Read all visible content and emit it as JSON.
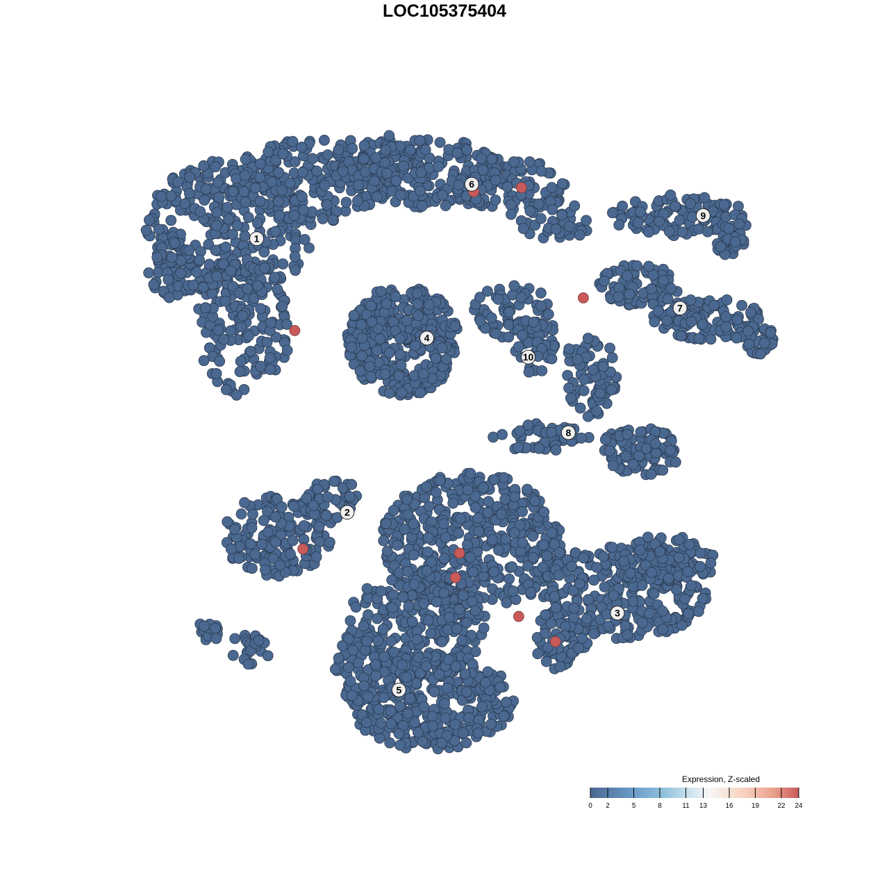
{
  "chart_data": {
    "type": "scatter",
    "title": "LOC105375404",
    "xlabel": "",
    "ylabel": "",
    "xlim": [
      -50,
      50
    ],
    "ylim": [
      -50,
      50
    ],
    "grid": false,
    "axes_visible": false,
    "base_color": "#4a6890",
    "high_color": "#c95a5a",
    "clusters": [
      {
        "label": "1",
        "x": -27.6,
        "y": 28.2
      },
      {
        "label": "2",
        "x": -14.3,
        "y": -12.0
      },
      {
        "label": "3",
        "x": 25.4,
        "y": -26.8
      },
      {
        "label": "4",
        "x": -2.6,
        "y": 13.6
      },
      {
        "label": "5",
        "x": -6.7,
        "y": -38.1
      },
      {
        "label": "6",
        "x": 4.0,
        "y": 36.2
      },
      {
        "label": "7",
        "x": 34.6,
        "y": 18.0
      },
      {
        "label": "8",
        "x": 18.2,
        "y": -0.3
      },
      {
        "label": "9",
        "x": 38.0,
        "y": 31.6
      },
      {
        "label": "10",
        "x": 12.3,
        "y": 10.8
      }
    ],
    "high_expression_points": [
      {
        "x": 4.3,
        "y": 35.1,
        "value": 24
      },
      {
        "x": 11.3,
        "y": 35.7,
        "value": 24
      },
      {
        "x": 20.4,
        "y": 19.5,
        "value": 24
      },
      {
        "x": -22.0,
        "y": 14.7,
        "value": 24
      },
      {
        "x": -20.8,
        "y": -17.4,
        "value": 24
      },
      {
        "x": 2.2,
        "y": -18.0,
        "value": 24
      },
      {
        "x": 1.6,
        "y": -21.6,
        "value": 24
      },
      {
        "x": 10.9,
        "y": -27.3,
        "value": 24
      },
      {
        "x": 16.3,
        "y": -31.0,
        "value": 24
      }
    ],
    "legend": {
      "title": "Expression, Z-scaled",
      "position": "bottom-right",
      "range": [
        0,
        24
      ],
      "ticks": [
        "0",
        "2",
        "5",
        "8",
        "11",
        "13",
        "16",
        "19",
        "22",
        "24"
      ],
      "colors": [
        "#4a6890",
        "#6a9ac8",
        "#8fc0dc",
        "#cfe3ee",
        "#f7f7f7",
        "#f9d6c4",
        "#eaa08a",
        "#c95a5a"
      ]
    }
  }
}
